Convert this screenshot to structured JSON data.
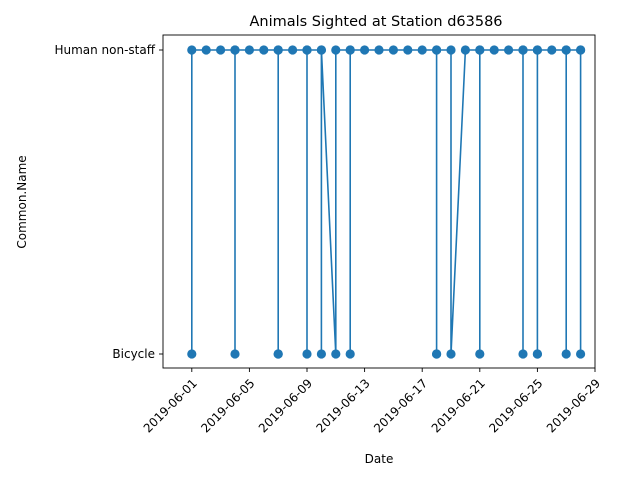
{
  "chart_data": {
    "type": "line",
    "title": "Animals Sighted at Station d63586",
    "xlabel": "Date",
    "ylabel": "Common.Name",
    "categories": [
      "Bicycle",
      "Human non-staff"
    ],
    "xlim": [
      "2019-05-30",
      "2019-06-29"
    ],
    "xticks": [
      "2019-06-01",
      "2019-06-05",
      "2019-06-09",
      "2019-06-13",
      "2019-06-17",
      "2019-06-21",
      "2019-06-25",
      "2019-06-29"
    ],
    "grid": false,
    "color": "#1f77b4",
    "series": [
      {
        "points": [
          {
            "x": "2019-06-01",
            "y": "Bicycle"
          },
          {
            "x": "2019-06-01",
            "y": "Human non-staff"
          },
          {
            "x": "2019-06-02",
            "y": "Human non-staff"
          },
          {
            "x": "2019-06-03",
            "y": "Human non-staff"
          },
          {
            "x": "2019-06-04",
            "y": "Human non-staff"
          },
          {
            "x": "2019-06-04",
            "y": "Bicycle"
          },
          {
            "x": "2019-06-04",
            "y": "Human non-staff"
          },
          {
            "x": "2019-06-05",
            "y": "Human non-staff"
          },
          {
            "x": "2019-06-06",
            "y": "Human non-staff"
          },
          {
            "x": "2019-06-07",
            "y": "Human non-staff"
          },
          {
            "x": "2019-06-07",
            "y": "Bicycle"
          },
          {
            "x": "2019-06-07",
            "y": "Bicycle"
          },
          {
            "x": "2019-06-07",
            "y": "Human non-staff"
          },
          {
            "x": "2019-06-08",
            "y": "Human non-staff"
          },
          {
            "x": "2019-06-09",
            "y": "Human non-staff"
          },
          {
            "x": "2019-06-09",
            "y": "Bicycle"
          },
          {
            "x": "2019-06-09",
            "y": "Human non-staff"
          },
          {
            "x": "2019-06-10",
            "y": "Human non-staff"
          },
          {
            "x": "2019-06-10",
            "y": "Bicycle"
          },
          {
            "x": "2019-06-10",
            "y": "Human non-staff"
          },
          {
            "x": "2019-06-11",
            "y": "Bicycle"
          },
          {
            "x": "2019-06-11",
            "y": "Human non-staff"
          },
          {
            "x": "2019-06-12",
            "y": "Human non-staff"
          },
          {
            "x": "2019-06-12",
            "y": "Bicycle"
          },
          {
            "x": "2019-06-12",
            "y": "Human non-staff"
          },
          {
            "x": "2019-06-13",
            "y": "Human non-staff"
          },
          {
            "x": "2019-06-14",
            "y": "Human non-staff"
          },
          {
            "x": "2019-06-15",
            "y": "Human non-staff"
          },
          {
            "x": "2019-06-16",
            "y": "Human non-staff"
          },
          {
            "x": "2019-06-17",
            "y": "Human non-staff"
          },
          {
            "x": "2019-06-18",
            "y": "Human non-staff"
          },
          {
            "x": "2019-06-18",
            "y": "Bicycle"
          },
          {
            "x": "2019-06-18",
            "y": "Bicycle"
          },
          {
            "x": "2019-06-18",
            "y": "Human non-staff"
          },
          {
            "x": "2019-06-19",
            "y": "Human non-staff"
          },
          {
            "x": "2019-06-19",
            "y": "Bicycle"
          },
          {
            "x": "2019-06-20",
            "y": "Human non-staff"
          },
          {
            "x": "2019-06-21",
            "y": "Human non-staff"
          },
          {
            "x": "2019-06-21",
            "y": "Bicycle"
          },
          {
            "x": "2019-06-21",
            "y": "Human non-staff"
          },
          {
            "x": "2019-06-22",
            "y": "Human non-staff"
          },
          {
            "x": "2019-06-23",
            "y": "Human non-staff"
          },
          {
            "x": "2019-06-24",
            "y": "Human non-staff"
          },
          {
            "x": "2019-06-24",
            "y": "Bicycle"
          },
          {
            "x": "2019-06-24",
            "y": "Human non-staff"
          },
          {
            "x": "2019-06-25",
            "y": "Human non-staff"
          },
          {
            "x": "2019-06-25",
            "y": "Bicycle"
          },
          {
            "x": "2019-06-25",
            "y": "Bicycle"
          },
          {
            "x": "2019-06-25",
            "y": "Human non-staff"
          },
          {
            "x": "2019-06-26",
            "y": "Human non-staff"
          },
          {
            "x": "2019-06-27",
            "y": "Human non-staff"
          },
          {
            "x": "2019-06-27",
            "y": "Bicycle"
          },
          {
            "x": "2019-06-27",
            "y": "Human non-staff"
          },
          {
            "x": "2019-06-28",
            "y": "Human non-staff"
          },
          {
            "x": "2019-06-28",
            "y": "Bicycle"
          },
          {
            "x": "2019-06-28",
            "y": "Human non-staff"
          }
        ]
      }
    ]
  }
}
